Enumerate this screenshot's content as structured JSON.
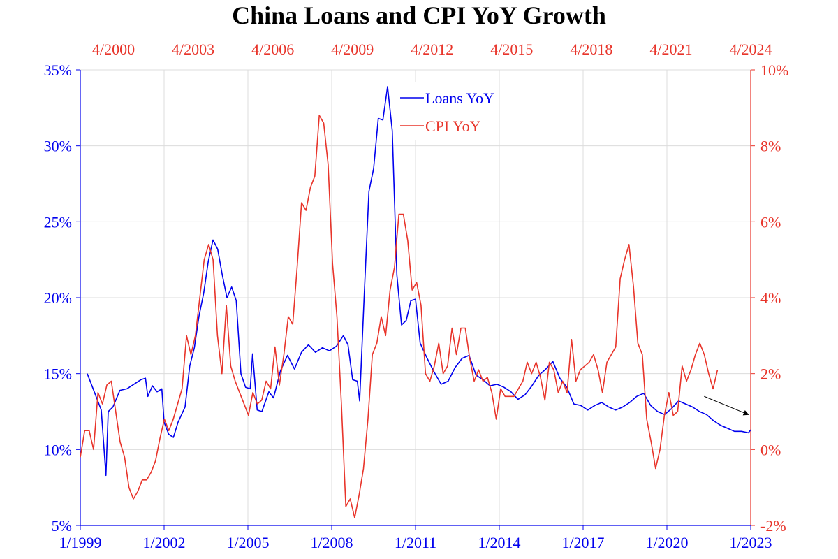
{
  "chart_data": {
    "type": "line",
    "title": "China Loans and CPI YoY Growth",
    "grid": true,
    "legend_position": "top-center",
    "colors": {
      "loans": "#0000ee",
      "cpi": "#e8342a",
      "grid": "#dcdcdc",
      "arrow": "#000000"
    },
    "x_bottom": {
      "ticks": [
        "1/1999",
        "1/2002",
        "1/2005",
        "1/2008",
        "1/2011",
        "1/2014",
        "1/2017",
        "1/2020",
        "1/2023"
      ],
      "range": [
        "1999-01",
        "2023-01"
      ]
    },
    "x_top": {
      "ticks": [
        "4/2000",
        "4/2003",
        "4/2006",
        "4/2009",
        "4/2012",
        "4/2015",
        "4/2018",
        "4/2021",
        "4/2024"
      ],
      "range": [
        "1999-01",
        "2024-04"
      ]
    },
    "y_left": {
      "ticks": [
        "5%",
        "10%",
        "15%",
        "20%",
        "25%",
        "30%",
        "35%"
      ],
      "range": [
        5,
        35
      ]
    },
    "y_right": {
      "ticks": [
        "-2%",
        "0%",
        "2%",
        "4%",
        "6%",
        "8%",
        "10%"
      ],
      "range": [
        -2,
        10
      ]
    },
    "series": [
      {
        "name": "Loans YoY",
        "axis": "left",
        "x_axis": "bottom",
        "points": [
          [
            "1999-04",
            15.0
          ],
          [
            "1999-07",
            13.8
          ],
          [
            "1999-10",
            12.6
          ],
          [
            "1999-12",
            8.3
          ],
          [
            "2000-01",
            12.5
          ],
          [
            "2000-03",
            12.8
          ],
          [
            "2000-06",
            13.9
          ],
          [
            "2000-09",
            14.0
          ],
          [
            "2000-12",
            14.3
          ],
          [
            "2001-03",
            14.6
          ],
          [
            "2001-05",
            14.7
          ],
          [
            "2001-06",
            13.5
          ],
          [
            "2001-08",
            14.2
          ],
          [
            "2001-10",
            13.8
          ],
          [
            "2001-12",
            14.0
          ],
          [
            "2002-01",
            11.8
          ],
          [
            "2002-03",
            11.0
          ],
          [
            "2002-05",
            10.8
          ],
          [
            "2002-07",
            11.8
          ],
          [
            "2002-10",
            12.8
          ],
          [
            "2002-12",
            15.5
          ],
          [
            "2003-02",
            16.7
          ],
          [
            "2003-04",
            18.8
          ],
          [
            "2003-06",
            20.3
          ],
          [
            "2003-08",
            22.4
          ],
          [
            "2003-10",
            23.8
          ],
          [
            "2003-12",
            23.2
          ],
          [
            "2004-02",
            21.5
          ],
          [
            "2004-04",
            20.0
          ],
          [
            "2004-06",
            20.7
          ],
          [
            "2004-08",
            19.8
          ],
          [
            "2004-10",
            15.0
          ],
          [
            "2004-12",
            14.1
          ],
          [
            "2005-02",
            14.0
          ],
          [
            "2005-03",
            16.3
          ],
          [
            "2005-05",
            12.6
          ],
          [
            "2005-07",
            12.5
          ],
          [
            "2005-10",
            13.8
          ],
          [
            "2005-12",
            13.4
          ],
          [
            "2006-03",
            15.2
          ],
          [
            "2006-06",
            16.2
          ],
          [
            "2006-09",
            15.3
          ],
          [
            "2006-12",
            16.4
          ],
          [
            "2007-03",
            16.9
          ],
          [
            "2007-06",
            16.4
          ],
          [
            "2007-09",
            16.7
          ],
          [
            "2007-12",
            16.5
          ],
          [
            "2008-03",
            16.8
          ],
          [
            "2008-06",
            17.5
          ],
          [
            "2008-08",
            16.9
          ],
          [
            "2008-10",
            14.6
          ],
          [
            "2008-12",
            14.5
          ],
          [
            "2009-01",
            13.2
          ],
          [
            "2009-03",
            20.3
          ],
          [
            "2009-05",
            27.0
          ],
          [
            "2009-07",
            28.5
          ],
          [
            "2009-09",
            31.8
          ],
          [
            "2009-11",
            31.7
          ],
          [
            "2010-01",
            33.9
          ],
          [
            "2010-03",
            31.0
          ],
          [
            "2010-05",
            21.5
          ],
          [
            "2010-07",
            18.2
          ],
          [
            "2010-09",
            18.5
          ],
          [
            "2010-11",
            19.8
          ],
          [
            "2011-01",
            19.9
          ],
          [
            "2011-03",
            17.0
          ],
          [
            "2011-06",
            16.0
          ],
          [
            "2011-09",
            15.1
          ],
          [
            "2011-12",
            14.3
          ],
          [
            "2012-03",
            14.5
          ],
          [
            "2012-06",
            15.4
          ],
          [
            "2012-09",
            16.0
          ],
          [
            "2012-12",
            16.2
          ],
          [
            "2013-03",
            14.9
          ],
          [
            "2013-06",
            14.6
          ],
          [
            "2013-09",
            14.2
          ],
          [
            "2013-12",
            14.3
          ],
          [
            "2014-03",
            14.1
          ],
          [
            "2014-06",
            13.8
          ],
          [
            "2014-09",
            13.3
          ],
          [
            "2014-12",
            13.6
          ],
          [
            "2015-03",
            14.2
          ],
          [
            "2015-06",
            14.9
          ],
          [
            "2015-09",
            15.3
          ],
          [
            "2015-12",
            15.8
          ],
          [
            "2016-03",
            14.7
          ],
          [
            "2016-06",
            14.1
          ],
          [
            "2016-09",
            13.0
          ],
          [
            "2016-12",
            12.9
          ],
          [
            "2017-03",
            12.6
          ],
          [
            "2017-06",
            12.9
          ],
          [
            "2017-09",
            13.1
          ],
          [
            "2017-12",
            12.8
          ],
          [
            "2018-03",
            12.6
          ],
          [
            "2018-06",
            12.8
          ],
          [
            "2018-09",
            13.1
          ],
          [
            "2018-12",
            13.5
          ],
          [
            "2019-03",
            13.7
          ],
          [
            "2019-06",
            12.9
          ],
          [
            "2019-09",
            12.5
          ],
          [
            "2019-12",
            12.3
          ],
          [
            "2020-03",
            12.7
          ],
          [
            "2020-06",
            13.2
          ],
          [
            "2020-09",
            13.0
          ],
          [
            "2020-12",
            12.8
          ],
          [
            "2021-03",
            12.5
          ],
          [
            "2021-06",
            12.3
          ],
          [
            "2021-09",
            11.9
          ],
          [
            "2021-12",
            11.6
          ],
          [
            "2022-03",
            11.4
          ],
          [
            "2022-06",
            11.2
          ],
          [
            "2022-09",
            11.2
          ],
          [
            "2022-12",
            11.1
          ],
          [
            "2023-01",
            11.3
          ]
        ]
      },
      {
        "name": "CPI YoY",
        "axis": "right",
        "x_axis": "top",
        "points": [
          [
            "1999-01",
            -0.2
          ],
          [
            "1999-03",
            0.5
          ],
          [
            "1999-05",
            0.5
          ],
          [
            "1999-07",
            0.0
          ],
          [
            "1999-09",
            1.5
          ],
          [
            "1999-11",
            1.2
          ],
          [
            "2000-01",
            1.7
          ],
          [
            "2000-03",
            1.8
          ],
          [
            "2000-05",
            1.0
          ],
          [
            "2000-07",
            0.2
          ],
          [
            "2000-09",
            -0.2
          ],
          [
            "2000-11",
            -1.0
          ],
          [
            "2001-01",
            -1.3
          ],
          [
            "2001-03",
            -1.1
          ],
          [
            "2001-05",
            -0.8
          ],
          [
            "2001-07",
            -0.8
          ],
          [
            "2001-09",
            -0.6
          ],
          [
            "2001-11",
            -0.3
          ],
          [
            "2002-01",
            0.3
          ],
          [
            "2002-03",
            0.8
          ],
          [
            "2002-05",
            0.5
          ],
          [
            "2002-07",
            0.8
          ],
          [
            "2002-09",
            1.2
          ],
          [
            "2002-11",
            1.6
          ],
          [
            "2003-01",
            3.0
          ],
          [
            "2003-03",
            2.5
          ],
          [
            "2003-05",
            3.0
          ],
          [
            "2003-07",
            4.0
          ],
          [
            "2003-09",
            5.0
          ],
          [
            "2003-11",
            5.4
          ],
          [
            "2004-01",
            5.0
          ],
          [
            "2004-03",
            3.0
          ],
          [
            "2004-05",
            2.0
          ],
          [
            "2004-07",
            3.8
          ],
          [
            "2004-09",
            2.2
          ],
          [
            "2004-11",
            1.8
          ],
          [
            "2005-01",
            1.5
          ],
          [
            "2005-03",
            1.2
          ],
          [
            "2005-05",
            0.9
          ],
          [
            "2005-07",
            1.5
          ],
          [
            "2005-09",
            1.2
          ],
          [
            "2005-11",
            1.3
          ],
          [
            "2006-01",
            1.8
          ],
          [
            "2006-03",
            1.6
          ],
          [
            "2006-05",
            2.7
          ],
          [
            "2006-07",
            1.7
          ],
          [
            "2006-09",
            2.5
          ],
          [
            "2006-11",
            3.5
          ],
          [
            "2007-01",
            3.3
          ],
          [
            "2007-03",
            4.8
          ],
          [
            "2007-05",
            6.5
          ],
          [
            "2007-07",
            6.3
          ],
          [
            "2007-09",
            6.9
          ],
          [
            "2007-11",
            7.2
          ],
          [
            "2008-01",
            8.8
          ],
          [
            "2008-03",
            8.6
          ],
          [
            "2008-05",
            7.5
          ],
          [
            "2008-07",
            4.9
          ],
          [
            "2008-09",
            3.5
          ],
          [
            "2008-11",
            1.2
          ],
          [
            "2009-01",
            -1.5
          ],
          [
            "2009-03",
            -1.3
          ],
          [
            "2009-05",
            -1.8
          ],
          [
            "2009-07",
            -1.2
          ],
          [
            "2009-09",
            -0.5
          ],
          [
            "2009-11",
            0.8
          ],
          [
            "2010-01",
            2.5
          ],
          [
            "2010-03",
            2.8
          ],
          [
            "2010-05",
            3.5
          ],
          [
            "2010-07",
            3.0
          ],
          [
            "2010-09",
            4.2
          ],
          [
            "2010-11",
            4.8
          ],
          [
            "2011-01",
            6.2
          ],
          [
            "2011-03",
            6.2
          ],
          [
            "2011-05",
            5.5
          ],
          [
            "2011-07",
            4.2
          ],
          [
            "2011-09",
            4.4
          ],
          [
            "2011-11",
            3.8
          ],
          [
            "2012-01",
            2.0
          ],
          [
            "2012-03",
            1.8
          ],
          [
            "2012-05",
            2.2
          ],
          [
            "2012-07",
            2.8
          ],
          [
            "2012-09",
            2.0
          ],
          [
            "2012-11",
            2.2
          ],
          [
            "2013-01",
            3.2
          ],
          [
            "2013-03",
            2.5
          ],
          [
            "2013-05",
            3.2
          ],
          [
            "2013-07",
            3.2
          ],
          [
            "2013-09",
            2.4
          ],
          [
            "2013-11",
            1.8
          ],
          [
            "2014-01",
            2.1
          ],
          [
            "2014-03",
            1.8
          ],
          [
            "2014-05",
            1.9
          ],
          [
            "2014-07",
            1.5
          ],
          [
            "2014-09",
            0.8
          ],
          [
            "2014-11",
            1.6
          ],
          [
            "2015-01",
            1.4
          ],
          [
            "2015-03",
            1.4
          ],
          [
            "2015-05",
            1.4
          ],
          [
            "2015-07",
            1.6
          ],
          [
            "2015-09",
            1.8
          ],
          [
            "2015-11",
            2.3
          ],
          [
            "2016-01",
            2.0
          ],
          [
            "2016-03",
            2.3
          ],
          [
            "2016-05",
            1.9
          ],
          [
            "2016-07",
            1.3
          ],
          [
            "2016-09",
            2.3
          ],
          [
            "2016-11",
            2.1
          ],
          [
            "2017-01",
            1.5
          ],
          [
            "2017-03",
            1.8
          ],
          [
            "2017-05",
            1.5
          ],
          [
            "2017-07",
            2.9
          ],
          [
            "2017-09",
            1.8
          ],
          [
            "2017-11",
            2.1
          ],
          [
            "2018-01",
            2.2
          ],
          [
            "2018-03",
            2.3
          ],
          [
            "2018-05",
            2.5
          ],
          [
            "2018-07",
            2.1
          ],
          [
            "2018-09",
            1.5
          ],
          [
            "2018-11",
            2.3
          ],
          [
            "2019-01",
            2.5
          ],
          [
            "2019-03",
            2.7
          ],
          [
            "2019-05",
            4.5
          ],
          [
            "2019-07",
            5.0
          ],
          [
            "2019-09",
            5.4
          ],
          [
            "2019-11",
            4.3
          ],
          [
            "2020-01",
            2.8
          ],
          [
            "2020-03",
            2.5
          ],
          [
            "2020-05",
            0.8
          ],
          [
            "2020-07",
            0.2
          ],
          [
            "2020-09",
            -0.5
          ],
          [
            "2020-11",
            0.0
          ],
          [
            "2021-01",
            0.9
          ],
          [
            "2021-03",
            1.5
          ],
          [
            "2021-05",
            0.9
          ],
          [
            "2021-07",
            1.0
          ],
          [
            "2021-09",
            2.2
          ],
          [
            "2021-11",
            1.8
          ],
          [
            "2022-01",
            2.1
          ],
          [
            "2022-03",
            2.5
          ],
          [
            "2022-05",
            2.8
          ],
          [
            "2022-07",
            2.5
          ],
          [
            "2022-09",
            2.0
          ],
          [
            "2022-11",
            1.6
          ],
          [
            "2023-01",
            2.1
          ]
        ]
      }
    ],
    "annotations": [
      {
        "type": "arrow",
        "from": [
          "2021-05",
          13.5
        ],
        "to": [
          "2022-12",
          12.3
        ],
        "axis": "left",
        "x_axis": "bottom"
      }
    ]
  }
}
